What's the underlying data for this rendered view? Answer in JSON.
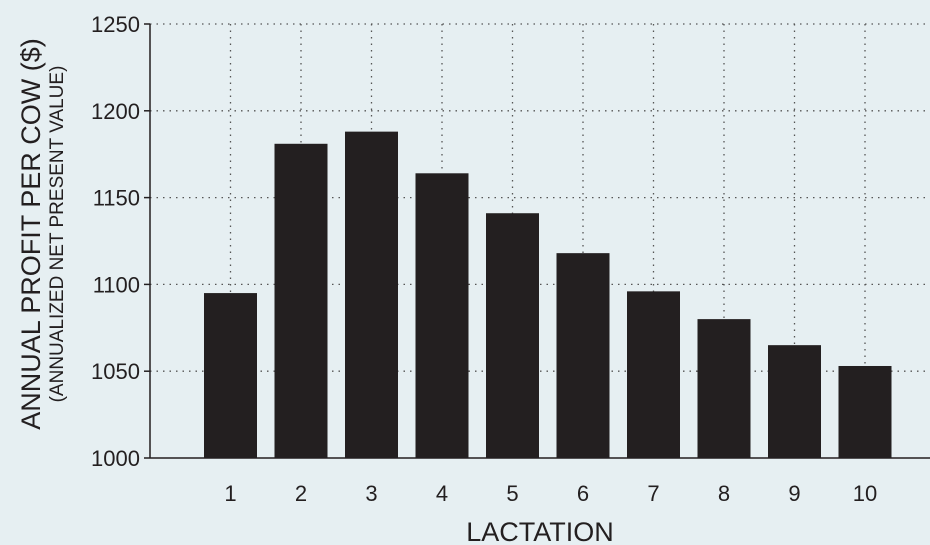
{
  "colors": {
    "background": "#e6eff2",
    "bar": "#231f20",
    "grid": "#555555",
    "text": "#231f20"
  },
  "chart_data": {
    "type": "bar",
    "title": "",
    "xlabel": "LACTATION",
    "ylabel": "ANNUAL PROFIT PER COW ($)",
    "ylabel_sub": "(ANNUALIZED NET PRESENT VALUE)",
    "categories": [
      "1",
      "2",
      "3",
      "4",
      "5",
      "6",
      "7",
      "8",
      "9",
      "10"
    ],
    "values": [
      1095,
      1181,
      1188,
      1164,
      1141,
      1118,
      1096,
      1080,
      1065,
      1053
    ],
    "ylim": [
      1000,
      1250
    ],
    "yticks": [
      "1000",
      "1050",
      "1100",
      "1150",
      "1200",
      "1250"
    ],
    "grid": true,
    "legend": "none"
  }
}
